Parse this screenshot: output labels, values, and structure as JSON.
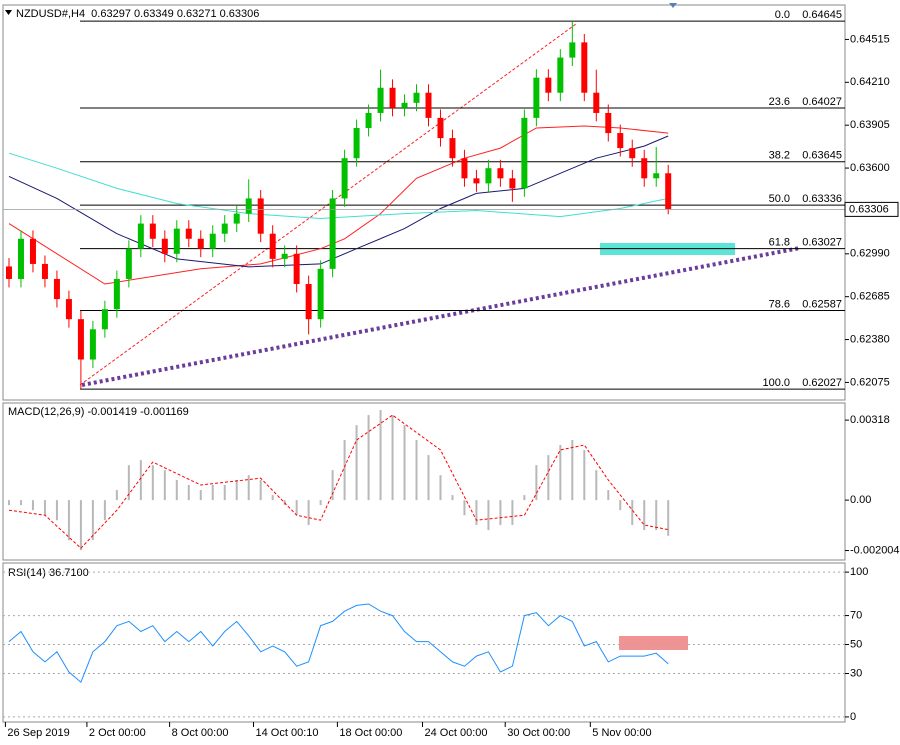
{
  "chart_data": [
    {
      "type": "candlestick",
      "title": "NZDUSD#,H4  0.63297 0.63349 0.63271 0.63306",
      "open": [
        0.629,
        0.62811,
        0.63097,
        0.62918,
        0.62811,
        0.62668,
        0.62525,
        0.62238,
        0.62453,
        0.62596,
        0.62811,
        0.63026,
        0.63205,
        0.63097,
        0.6299,
        0.63169,
        0.63097,
        0.63026,
        0.63133,
        0.63205,
        0.63276,
        0.63384,
        0.63133,
        0.62954,
        0.6299,
        0.62775,
        0.62525,
        0.62883,
        0.63384,
        0.6367,
        0.63885,
        0.63992,
        0.64171,
        0.64028,
        0.64064,
        0.64136,
        0.63957,
        0.63813,
        0.6367,
        0.63527,
        0.63491,
        0.63599,
        0.63527,
        0.63455,
        0.63957,
        0.64243,
        0.64136,
        0.64386,
        0.64494,
        0.64136,
        0.63992,
        0.63849,
        0.63742,
        0.6367,
        0.63527,
        0.63563
      ],
      "high": [
        0.6296,
        0.63157,
        0.63157,
        0.62978,
        0.62871,
        0.62728,
        0.62585,
        0.62513,
        0.62656,
        0.62871,
        0.63086,
        0.63265,
        0.63265,
        0.63157,
        0.63229,
        0.63229,
        0.63157,
        0.63193,
        0.63265,
        0.63336,
        0.6352,
        0.63444,
        0.63193,
        0.6305,
        0.6305,
        0.62835,
        0.62943,
        0.63444,
        0.6373,
        0.63945,
        0.64052,
        0.643,
        0.64231,
        0.64124,
        0.64196,
        0.64196,
        0.64017,
        0.63873,
        0.6373,
        0.63587,
        0.63659,
        0.63659,
        0.63587,
        0.64017,
        0.64303,
        0.64303,
        0.64446,
        0.64645,
        0.64554,
        0.643,
        0.64052,
        0.63909,
        0.63802,
        0.6373,
        0.6375,
        0.63623
      ],
      "low": [
        0.62751,
        0.62751,
        0.62858,
        0.62751,
        0.62608,
        0.62465,
        0.62027,
        0.62178,
        0.62393,
        0.62536,
        0.62751,
        0.62966,
        0.63037,
        0.6293,
        0.6293,
        0.63037,
        0.62966,
        0.62966,
        0.63073,
        0.63145,
        0.63216,
        0.63073,
        0.62894,
        0.62894,
        0.62715,
        0.62417,
        0.62465,
        0.62823,
        0.63324,
        0.6361,
        0.63825,
        0.63932,
        0.63968,
        0.63968,
        0.64004,
        0.63897,
        0.63753,
        0.6361,
        0.63467,
        0.63431,
        0.63431,
        0.63467,
        0.6336,
        0.63395,
        0.63897,
        0.64076,
        0.64076,
        0.64326,
        0.64076,
        0.63932,
        0.63789,
        0.63682,
        0.6361,
        0.63467,
        0.63467,
        0.63271
      ],
      "close": [
        0.62811,
        0.63097,
        0.62918,
        0.62811,
        0.62668,
        0.62525,
        0.62238,
        0.62453,
        0.62596,
        0.62811,
        0.63026,
        0.63205,
        0.63097,
        0.6299,
        0.63169,
        0.63097,
        0.63026,
        0.63133,
        0.63205,
        0.63276,
        0.63384,
        0.63133,
        0.62954,
        0.6299,
        0.62775,
        0.62525,
        0.62883,
        0.63384,
        0.6367,
        0.63885,
        0.63992,
        0.64171,
        0.64028,
        0.64064,
        0.64136,
        0.63957,
        0.63813,
        0.6367,
        0.63527,
        0.63491,
        0.63599,
        0.63527,
        0.63455,
        0.63957,
        0.64243,
        0.64136,
        0.64386,
        0.64494,
        0.64136,
        0.63992,
        0.63849,
        0.63742,
        0.6367,
        0.63527,
        0.63563,
        0.63306
      ],
      "up_color": "#00c000",
      "down_color": "#ff0000",
      "series": [
        {
          "color": "#ff2020",
          "x": [
            0,
            8,
            16,
            21,
            26,
            28,
            31,
            34,
            38,
            41,
            44,
            48,
            51,
            55
          ],
          "values": [
            0.63205,
            0.62775,
            0.62883,
            0.62918,
            0.63026,
            0.63097,
            0.63276,
            0.63527,
            0.6367,
            0.63742,
            0.63885,
            0.63899,
            0.63885,
            0.63849
          ]
        },
        {
          "color": "#191970",
          "x": [
            0,
            4,
            9,
            14,
            20,
            26,
            29,
            33,
            36,
            39,
            43,
            46,
            49,
            53,
            55
          ],
          "values": [
            0.63541,
            0.63384,
            0.63133,
            0.62954,
            0.62897,
            0.62918,
            0.63026,
            0.63169,
            0.63312,
            0.6342,
            0.63455,
            0.63563,
            0.6367,
            0.63756,
            0.63828
          ]
        },
        {
          "color": "#40e0d0",
          "x": [
            0,
            4,
            9,
            14,
            20,
            26,
            33,
            39,
            46,
            51,
            55
          ],
          "values": [
            0.63706,
            0.63599,
            0.63455,
            0.63348,
            0.63276,
            0.63241,
            0.63276,
            0.63298,
            0.63255,
            0.63312,
            0.63384
          ]
        }
      ],
      "fib_levels": [
        {
          "label": "0.0",
          "value": 0.64645
        },
        {
          "label": "23.6",
          "value": 0.64027
        },
        {
          "label": "38.2",
          "value": 0.63645
        },
        {
          "label": "50.0",
          "value": 0.63336
        },
        {
          "label": "61.8",
          "value": 0.63027
        },
        {
          "label": "78.6",
          "value": 0.62587
        },
        {
          "label": "100.0",
          "value": 0.62027
        }
      ],
      "xlim": [
        -0.5,
        69.75
      ],
      "xticks": [
        {
          "value": -0.3,
          "label": "26 Sep 2019"
        },
        {
          "value": 6.5,
          "label": "2 Oct 00:00"
        },
        {
          "value": 13.4,
          "label": "8 Oct 00:00"
        },
        {
          "value": 20.4,
          "label": "14 Oct 00:10"
        },
        {
          "value": 27.4,
          "label": "18 Oct 00:00"
        },
        {
          "value": 34.5,
          "label": "24 Oct 00:00"
        },
        {
          "value": 41.4,
          "label": "30 Oct 00:00"
        },
        {
          "value": 48.5,
          "label": "5 Nov 00:00"
        }
      ],
      "ylim": [
        0.6195,
        0.6476
      ],
      "yticks": [
        0.64515,
        {
          "value": 0.6421,
          "label": "0.64210"
        },
        0.63905,
        {
          "value": 0.636,
          "label": "0.63600"
        },
        {
          "value": 0.6299,
          "label": "0.62990"
        },
        0.62685,
        {
          "value": 0.6238,
          "label": "0.62380"
        },
        0.62075
      ]
    },
    {
      "type": "bar",
      "title": "MACD(12,26,9) -0.001419 -0.001169",
      "color": "#b8b8b8",
      "values": [
        -0.0002,
        -0.0002,
        -0.0004,
        -0.0006,
        -0.0008,
        -0.00159,
        -0.00199,
        -0.00159,
        -0.0008,
        0.0004,
        0.00139,
        0.00159,
        0.00139,
        0.00119,
        0.0008,
        0.0006,
        0.0004,
        0.0006,
        0.0006,
        0.0008,
        0.00099,
        0.0008,
        0.0002,
        -0.0002,
        -0.0006,
        -0.00099,
        -0.0002,
        0.00119,
        0.00239,
        0.00298,
        0.00338,
        0.00358,
        0.00338,
        0.00298,
        0.00239,
        0.00179,
        0.00099,
        0.0002,
        -0.0006,
        -0.00099,
        -0.00119,
        -0.00099,
        -0.00099,
        0.0002,
        0.00139,
        0.00179,
        0.00219,
        0.00239,
        0.00199,
        0.00119,
        0.0004,
        -0.0004,
        -0.00099,
        -0.00119,
        -0.00119,
        -0.00142
      ],
      "series": [
        {
          "color": "#ff0000",
          "dashed": true,
          "x": [
            0,
            3,
            6,
            9,
            12,
            16,
            21,
            24,
            26,
            29,
            32,
            36,
            39,
            43,
            46,
            48,
            50,
            53,
            55
          ],
          "values": [
            -0.0004,
            -0.0006,
            -0.00191,
            -0.0004,
            0.00151,
            0.0006,
            0.00087,
            -0.0006,
            -0.0008,
            0.00239,
            0.00338,
            0.00199,
            -0.0008,
            -0.0006,
            0.00199,
            0.00219,
            0.0008,
            -0.00099,
            -0.00117
          ]
        }
      ],
      "ylim": [
        -0.00238,
        0.00386
      ],
      "yticks": [
        0.00318,
        {
          "value": 0,
          "label": "0.00"
        },
        -0.002004
      ]
    },
    {
      "type": "line",
      "title": "RSI(14) 36.7100",
      "color": "#1e90ff",
      "values": [
        52,
        59,
        45,
        38,
        45,
        31,
        24,
        45,
        52,
        63,
        66,
        59,
        63,
        52,
        59,
        52,
        59,
        49,
        59,
        66,
        56,
        45,
        49,
        45,
        35,
        38,
        63,
        66,
        73,
        77,
        78,
        73,
        70,
        59,
        52,
        52,
        45,
        38,
        35,
        42,
        45,
        31,
        35,
        70,
        72,
        63,
        70,
        66,
        49,
        52,
        38,
        42,
        42,
        42,
        44,
        36.71
      ],
      "ylim": [
        -3.5,
        106.3
      ],
      "yticks": [
        100,
        70,
        50,
        30,
        0
      ],
      "grid": true
    }
  ]
}
